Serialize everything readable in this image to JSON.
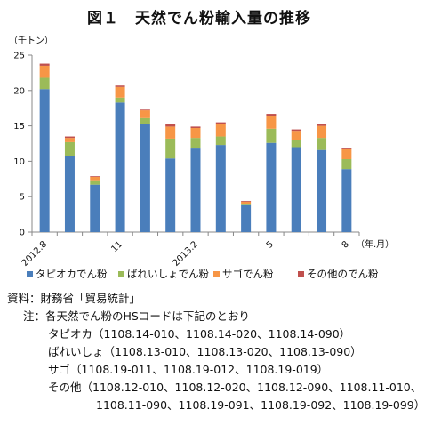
{
  "title": "図１　天然でん粉輸入量の推移",
  "chart_data": {
    "type": "bar",
    "stacked": true,
    "unit": "（千トン）",
    "ylim": [
      0,
      25
    ],
    "yticks": [
      0,
      5,
      10,
      15,
      20,
      25
    ],
    "categories": [
      "2012.8",
      "",
      "",
      "11",
      "",
      "",
      "2013.2",
      "",
      "",
      "5",
      "",
      "",
      "8"
    ],
    "x_tick_labels": [
      {
        "index": 0,
        "label": "2012.8"
      },
      {
        "index": 3,
        "label": "11"
      },
      {
        "index": 6,
        "label": "2013.2"
      },
      {
        "index": 9,
        "label": "5"
      },
      {
        "index": 12,
        "label": "8"
      }
    ],
    "x_unit_label": "（年.月）",
    "series": [
      {
        "name": "タピオカでん粉",
        "color": "#4a7ebb",
        "values": [
          20.2,
          10.7,
          6.7,
          18.3,
          15.3,
          10.4,
          11.8,
          12.3,
          3.8,
          12.6,
          12.0,
          11.6,
          8.9
        ]
      },
      {
        "name": "ばれいしょでん粉",
        "color": "#9bbb59",
        "values": [
          1.6,
          2.0,
          0.5,
          0.7,
          0.8,
          2.8,
          1.5,
          1.2,
          0.2,
          2.0,
          1.0,
          1.7,
          1.4
        ]
      },
      {
        "name": "サゴでん粉",
        "color": "#f79646",
        "values": [
          1.7,
          0.6,
          0.6,
          1.5,
          1.1,
          1.7,
          1.4,
          1.8,
          0.3,
          1.8,
          1.3,
          1.7,
          1.4
        ]
      },
      {
        "name": "その他のでん粉",
        "color": "#c0504d",
        "values": [
          0.3,
          0.2,
          0.1,
          0.2,
          0.1,
          0.3,
          0.2,
          0.2,
          0.1,
          0.3,
          0.2,
          0.2,
          0.2
        ]
      }
    ],
    "grid": false,
    "legend_position": "bottom"
  },
  "notes": {
    "source": "資料：財務省「貿易統計」",
    "note_intro": "注：各天然でん粉のHSコードは下記のとおり",
    "tapioca": "タピオカ（1108.14-010、1108.14-020、1108.14-090）",
    "potato": "ばれいしょ（1108.13-010、1108.13-020、1108.13-090）",
    "sago": "サゴ（1108.19-011、1108.19-012、1108.19-019）",
    "other_1": "その他（1108.12-010、1108.12-020、1108.12-090、1108.11-010、",
    "other_2": "1108.11-090、1108.19-091、1108.19-092、1108.19-099）"
  }
}
